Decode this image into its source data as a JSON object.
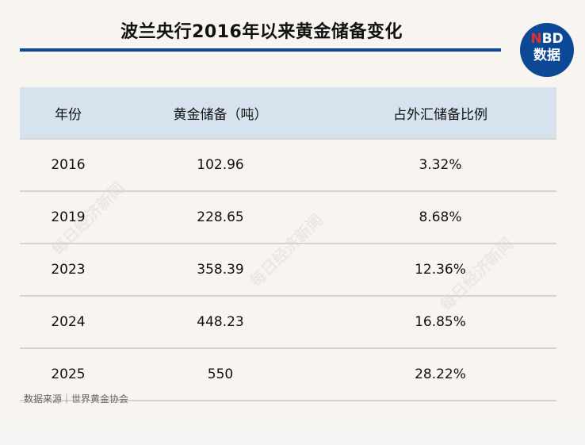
{
  "title": "波兰央行2016年以来黄金储备变化",
  "logo": {
    "line1_accent": "N",
    "line1_rest": "BD",
    "line2": "数据"
  },
  "watermark": "每日经济新闻",
  "chart_data": {
    "type": "table",
    "columns": [
      "年份",
      "黄金储备（吨）",
      "占外汇储备比例"
    ],
    "rows": [
      [
        "2016",
        "102.96",
        "3.32%"
      ],
      [
        "2019",
        "228.65",
        "8.68%"
      ],
      [
        "2023",
        "358.39",
        "12.36%"
      ],
      [
        "2024",
        "448.23",
        "16.85%"
      ],
      [
        "2025",
        "550",
        "28.22%"
      ]
    ]
  },
  "source": "数据来源｜世界黄金协会",
  "colors": {
    "accent": "#0a4a9c",
    "header_bg": "#d6e3ef",
    "logo_red": "#e03030"
  }
}
